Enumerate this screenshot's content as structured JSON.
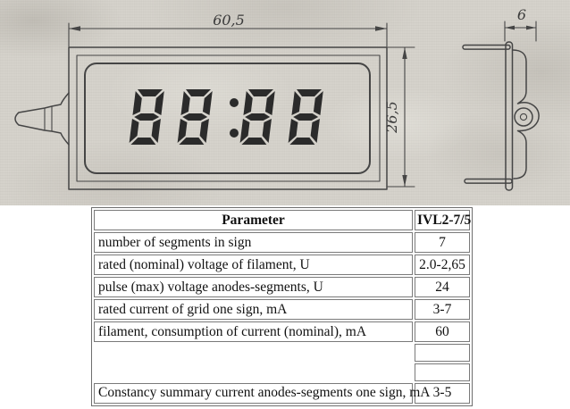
{
  "drawing": {
    "front_view": {
      "width_label": "60,5",
      "height_label": "26,5",
      "display_value": "88:88"
    },
    "side_view": {
      "depth_label": "6"
    }
  },
  "table": {
    "headers": [
      "Parameter",
      "IVL2-7/5"
    ],
    "rows": [
      {
        "param": "number of segments in sign",
        "value": "7"
      },
      {
        "param": "rated (nominal) voltage of filament, U",
        "value": "2.0-2,65"
      },
      {
        "param": "pulse (max) voltage anodes-segments, U",
        "value": "24"
      },
      {
        "param": "rated current of grid one sign, mA",
        "value": "3-7"
      },
      {
        "param": "filament, consumption of current (nominal), mA",
        "value": "60"
      },
      {
        "param": "",
        "value": ""
      },
      {
        "param": "",
        "value": ""
      },
      {
        "param": "Constancy summary current anodes-segments one sign, mA",
        "value": "3-5"
      }
    ]
  },
  "colors": {
    "paper": "#d6d3cc",
    "drawing_line": "#454545",
    "digit": "#2b2b2b",
    "table_border": "#7a7a7a"
  }
}
